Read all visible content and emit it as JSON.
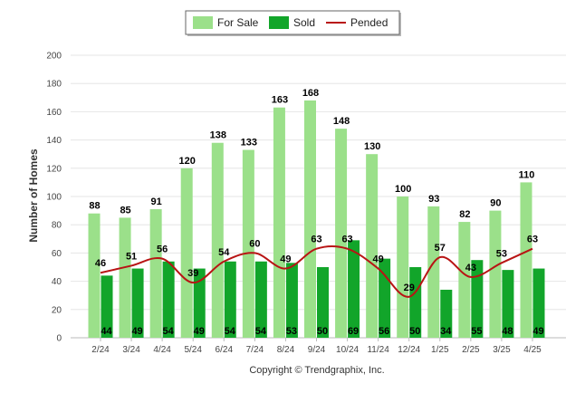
{
  "chart_data": {
    "type": "bar",
    "title": "",
    "xlabel": "",
    "ylabel": "Number of Homes",
    "ylim": [
      0,
      200
    ],
    "yticks": [
      0,
      20,
      40,
      60,
      80,
      100,
      120,
      140,
      160,
      180,
      200
    ],
    "grid": true,
    "legend_position": "top-center",
    "categories": [
      "2/24",
      "3/24",
      "4/24",
      "5/24",
      "6/24",
      "7/24",
      "8/24",
      "9/24",
      "10/24",
      "11/24",
      "12/24",
      "1/25",
      "2/25",
      "3/25",
      "4/25"
    ],
    "series": [
      {
        "name": "For Sale",
        "kind": "bar",
        "color": "#9be08a",
        "values": [
          88,
          85,
          91,
          120,
          138,
          133,
          163,
          168,
          148,
          130,
          100,
          93,
          82,
          90,
          110
        ]
      },
      {
        "name": "Sold",
        "kind": "bar",
        "color": "#12a52a",
        "values": [
          44,
          49,
          54,
          49,
          54,
          54,
          53,
          50,
          69,
          56,
          50,
          34,
          55,
          48,
          49
        ]
      },
      {
        "name": "Pended",
        "kind": "line",
        "color": "#b81414",
        "values": [
          46,
          51,
          56,
          39,
          54,
          60,
          49,
          63,
          63,
          49,
          29,
          57,
          43,
          53,
          63
        ]
      }
    ]
  },
  "footer": {
    "copyright": "Copyright © Trendgraphix, Inc."
  }
}
